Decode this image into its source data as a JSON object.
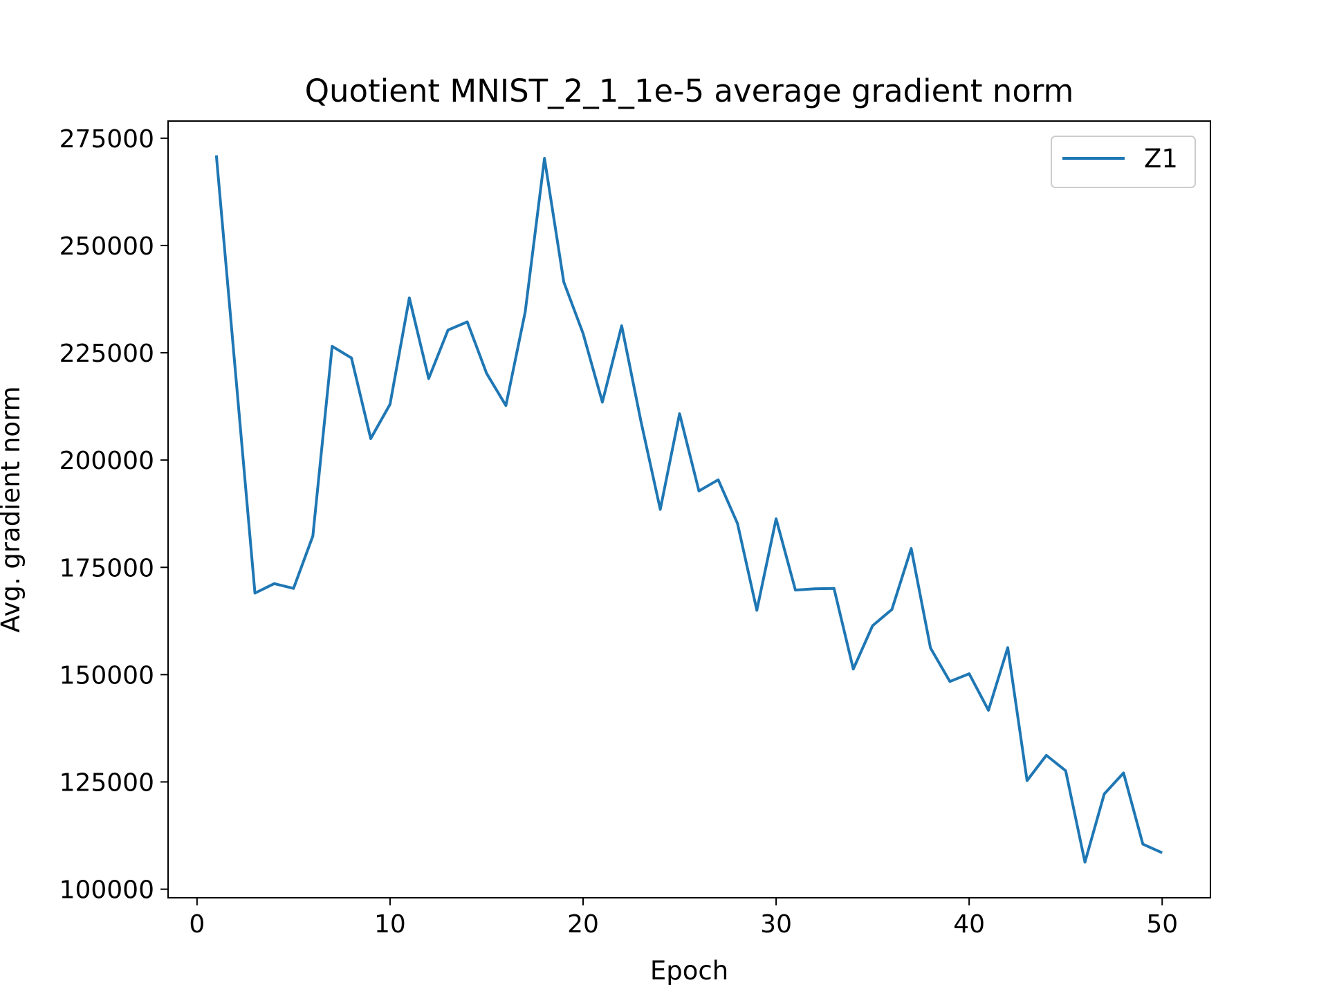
{
  "chart_data": {
    "type": "line",
    "title": "Quotient MNIST_2_1_1e-5 average gradient norm",
    "xlabel": "Epoch",
    "ylabel": "Avg. gradient norm",
    "xlim": [
      -1.5,
      52.5
    ],
    "ylim": [
      98000,
      279000
    ],
    "xticks": [
      0,
      10,
      20,
      30,
      40,
      50
    ],
    "yticks": [
      100000,
      125000,
      150000,
      175000,
      200000,
      225000,
      250000,
      275000
    ],
    "grid": false,
    "legend_position": "top-right",
    "series": [
      {
        "name": "Z1",
        "color": "#1f77b4",
        "x": [
          1,
          2,
          3,
          4,
          5,
          6,
          7,
          8,
          9,
          10,
          11,
          12,
          13,
          14,
          15,
          16,
          17,
          18,
          19,
          20,
          21,
          22,
          23,
          24,
          25,
          26,
          27,
          28,
          29,
          30,
          31,
          32,
          33,
          34,
          35,
          36,
          37,
          38,
          39,
          40,
          41,
          42,
          43,
          44,
          45,
          46,
          47,
          48,
          49,
          50
        ],
        "y": [
          271000,
          220000,
          169000,
          171200,
          170100,
          182300,
          226500,
          223800,
          205000,
          213000,
          237800,
          219000,
          230300,
          232200,
          220200,
          212700,
          234500,
          270300,
          241500,
          229500,
          213500,
          231300,
          209000,
          188500,
          210800,
          192800,
          195400,
          185200,
          165000,
          186300,
          169700,
          170000,
          170100,
          151300,
          161400,
          165200,
          179400,
          156200,
          148400,
          150200,
          141700,
          156300,
          125300,
          131200,
          127600,
          106300,
          122200,
          127100,
          110500,
          108500
        ]
      }
    ]
  }
}
